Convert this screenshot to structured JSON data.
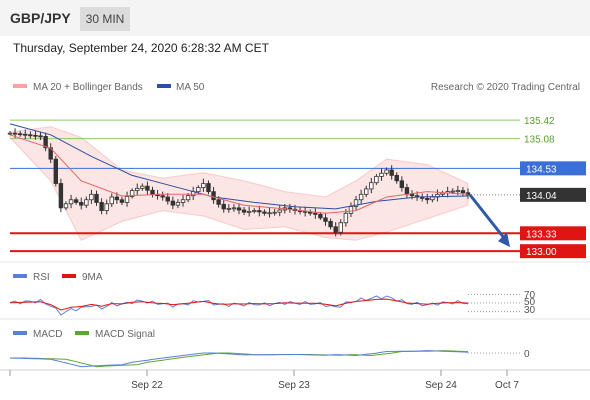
{
  "header": {
    "symbol": "GBP/JPY",
    "interval": "30 MIN",
    "timestamp": "Thursday, September 24, 2020 6:28:32 AM CET"
  },
  "legend": {
    "ma20": "MA 20 + Bollinger Bands",
    "ma50": "MA 50",
    "credit": "Research © 2020 Trading Central"
  },
  "colors": {
    "bollinger": "#f5a3a3",
    "ma50": "#2c4fa0",
    "green": "#8fc86a",
    "blue": "#3a6fd8",
    "red": "#e11414",
    "price": "#333333",
    "arrow": "#2e5aa8"
  },
  "chart_data": {
    "type": "candlestick",
    "symbol": "GBP/JPY",
    "ylim": [
      132.8,
      135.7
    ],
    "x_ticks": [
      "Sep 22",
      "Sep 23",
      "Sep 24",
      "Oct 7"
    ],
    "levels": [
      {
        "label": "135.42",
        "value": 135.42,
        "kind": "resistance-green"
      },
      {
        "label": "135.08",
        "value": 135.08,
        "kind": "resistance-green"
      },
      {
        "label": "134.53",
        "value": 134.53,
        "kind": "resistance-blue"
      },
      {
        "label": "134.04",
        "value": 134.04,
        "kind": "last-price"
      },
      {
        "label": "133.33",
        "value": 133.33,
        "kind": "support-red"
      },
      {
        "label": "133.00",
        "value": 133.0,
        "kind": "support-red"
      }
    ],
    "price_path": [
      [
        0,
        135.18
      ],
      [
        3,
        135.15
      ],
      [
        6,
        135.12
      ],
      [
        8,
        134.7
      ],
      [
        10,
        133.8
      ],
      [
        12,
        133.95
      ],
      [
        14,
        133.85
      ],
      [
        16,
        134.05
      ],
      [
        18,
        133.75
      ],
      [
        20,
        134.0
      ],
      [
        22,
        133.9
      ],
      [
        24,
        134.12
      ],
      [
        26,
        134.2
      ],
      [
        28,
        134.05
      ],
      [
        30,
        134.0
      ],
      [
        32,
        133.85
      ],
      [
        34,
        133.95
      ],
      [
        36,
        134.1
      ],
      [
        38,
        134.25
      ],
      [
        40,
        133.95
      ],
      [
        42,
        133.78
      ],
      [
        44,
        133.8
      ],
      [
        46,
        133.72
      ],
      [
        48,
        133.75
      ],
      [
        50,
        133.7
      ],
      [
        52,
        133.72
      ],
      [
        54,
        133.8
      ],
      [
        56,
        133.75
      ],
      [
        58,
        133.72
      ],
      [
        60,
        133.68
      ],
      [
        62,
        133.55
      ],
      [
        64,
        133.35
      ],
      [
        66,
        133.7
      ],
      [
        68,
        133.95
      ],
      [
        70,
        134.15
      ],
      [
        72,
        134.38
      ],
      [
        74,
        134.5
      ],
      [
        76,
        134.3
      ],
      [
        78,
        134.05
      ],
      [
        80,
        134.0
      ],
      [
        82,
        133.95
      ],
      [
        84,
        134.05
      ],
      [
        86,
        134.1
      ],
      [
        88,
        134.12
      ],
      [
        90,
        134.04
      ]
    ],
    "ma50_path": [
      [
        0,
        135.35
      ],
      [
        8,
        135.15
      ],
      [
        16,
        134.75
      ],
      [
        24,
        134.4
      ],
      [
        32,
        134.2
      ],
      [
        40,
        134.0
      ],
      [
        48,
        133.9
      ],
      [
        56,
        133.82
      ],
      [
        64,
        133.78
      ],
      [
        72,
        133.92
      ],
      [
        80,
        134.0
      ],
      [
        90,
        134.02
      ]
    ],
    "ma20_path": [
      [
        0,
        135.15
      ],
      [
        8,
        134.9
      ],
      [
        14,
        134.3
      ],
      [
        22,
        134.02
      ],
      [
        30,
        134.05
      ],
      [
        38,
        134.05
      ],
      [
        46,
        133.85
      ],
      [
        54,
        133.78
      ],
      [
        62,
        133.7
      ],
      [
        68,
        133.75
      ],
      [
        74,
        134.0
      ],
      [
        82,
        134.1
      ],
      [
        90,
        134.05
      ]
    ],
    "bollinger_upper": [
      [
        0,
        135.2
      ],
      [
        8,
        135.3
      ],
      [
        14,
        135.1
      ],
      [
        22,
        134.5
      ],
      [
        30,
        134.35
      ],
      [
        38,
        134.45
      ],
      [
        46,
        134.3
      ],
      [
        54,
        134.1
      ],
      [
        62,
        134.0
      ],
      [
        68,
        134.3
      ],
      [
        74,
        134.7
      ],
      [
        82,
        134.6
      ],
      [
        90,
        134.25
      ]
    ],
    "bollinger_lower": [
      [
        0,
        135.1
      ],
      [
        8,
        134.3
      ],
      [
        14,
        133.2
      ],
      [
        22,
        133.55
      ],
      [
        30,
        133.75
      ],
      [
        38,
        133.65
      ],
      [
        46,
        133.4
      ],
      [
        54,
        133.45
      ],
      [
        62,
        133.25
      ],
      [
        68,
        133.2
      ],
      [
        74,
        133.35
      ],
      [
        82,
        133.6
      ],
      [
        90,
        133.85
      ]
    ],
    "rsi": {
      "legend": [
        "RSI",
        "9MA"
      ],
      "ticks": [
        "70",
        "50",
        "30"
      ],
      "ylim": [
        20,
        80
      ]
    },
    "macd": {
      "legend": [
        "MACD",
        "MACD Signal"
      ],
      "ticks": [
        "0"
      ]
    }
  }
}
